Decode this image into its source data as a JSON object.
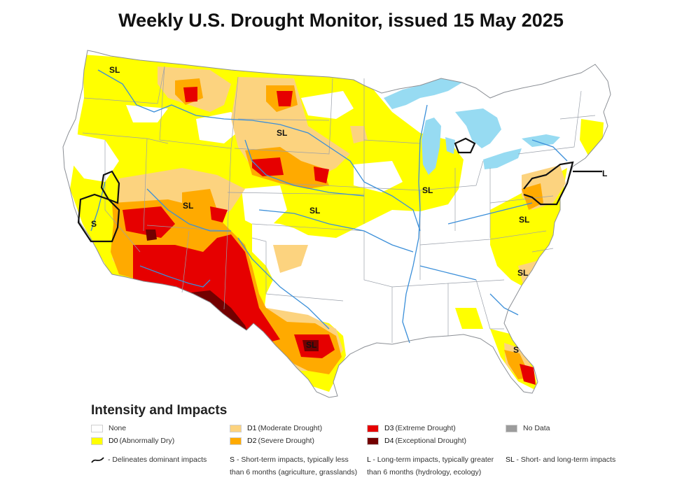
{
  "title": "Weekly U.S. Drought Monitor, issued 15 May 2025",
  "colors": {
    "none": "#ffffff",
    "d0": "#ffff00",
    "d1": "#fcd37f",
    "d2": "#ffaa00",
    "d3": "#e60000",
    "d4": "#730000",
    "no_data": "#9c9c9c",
    "water": "#97dbf2",
    "river": "#3b8fd9"
  },
  "map_labels": {
    "pnw": "SL",
    "northern_plains": "SL",
    "california": "S",
    "four_corners": "SL",
    "central_plains": "SL",
    "midwest": "SL",
    "virginia": "SL",
    "carolinas": "SL",
    "texas": "SL",
    "florida": "S",
    "northeast": "L"
  },
  "legend": {
    "title": "Intensity and Impacts",
    "items": [
      {
        "code": "",
        "text": "None",
        "color_key": "none"
      },
      {
        "code": "D0",
        "text": "(Abnormally Dry)",
        "color_key": "d0"
      },
      {
        "code": "D1",
        "text": "(Moderate Drought)",
        "color_key": "d1"
      },
      {
        "code": "D2",
        "text": "(Severe Drought)",
        "color_key": "d2"
      },
      {
        "code": "D3",
        "text": "(Extreme Drought)",
        "color_key": "d3"
      },
      {
        "code": "D4",
        "text": "(Exceptional Drought)",
        "color_key": "d4"
      },
      {
        "code": "",
        "text": "No Data",
        "color_key": "no_data"
      }
    ],
    "impacts": {
      "line": "- Delineates dominant impacts",
      "s_code": "S",
      "s_text": "- Short-term impacts, typically less",
      "s_text2": "than 6 months (agriculture, grasslands)",
      "l_code": "L",
      "l_text": "- Long-term impacts, typically greater",
      "l_text2": "than 6 months (hydrology, ecology)",
      "sl_code": "SL",
      "sl_text": "- Short- and long-term impacts"
    }
  }
}
